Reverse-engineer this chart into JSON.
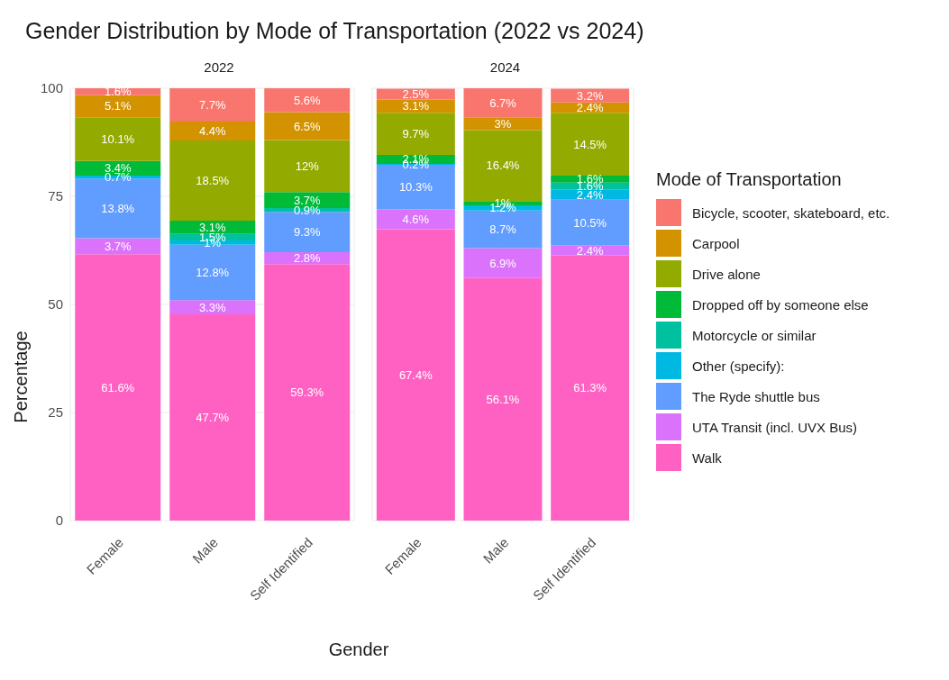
{
  "chart_data": [
    {
      "type": "bar",
      "title": "Gender Distribution by Mode of Transportation (2022 vs 2024)",
      "subtitle": "2022",
      "xlabel": "Gender",
      "ylabel": "Percentage",
      "categories": [
        "Female",
        "Male",
        "Self Identified"
      ],
      "stacked": true,
      "ylim": [
        0,
        100
      ],
      "yticks": [
        0,
        25,
        50,
        75,
        100
      ],
      "grid": true,
      "series": [
        {
          "color": "#ff61c3",
          "values": [
            61.6,
            47.7,
            59.3
          ],
          "value_labels": [
            "61.6%",
            "47.7%",
            "59.3%"
          ]
        },
        {
          "color": "#db72fb",
          "values": [
            3.7,
            3.3,
            2.8
          ],
          "value_labels": [
            "3.7%",
            "3.3%",
            "2.8%"
          ]
        },
        {
          "color": "#619cff",
          "values": [
            13.8,
            12.8,
            9.3
          ],
          "value_labels": [
            "13.8%",
            "12.8%",
            "9.3%"
          ]
        },
        {
          "color": "#00b9e3",
          "values": [
            0.7,
            1,
            null
          ],
          "value_labels": [
            "0.7%",
            "1%",
            null
          ]
        },
        {
          "color": "#00c19f",
          "values": [
            null,
            1.5,
            0.9
          ],
          "value_labels": [
            null,
            "1.5%",
            "0.9%"
          ]
        },
        {
          "color": "#00ba38",
          "values": [
            3.4,
            3.1,
            3.7
          ],
          "value_labels": [
            "3.4%",
            "3.1%",
            "3.7%"
          ]
        },
        {
          "color": "#93aa00",
          "values": [
            10.1,
            18.5,
            12
          ],
          "value_labels": [
            "10.1%",
            "18.5%",
            "12%"
          ]
        },
        {
          "color": "#d39200",
          "values": [
            5.1,
            4.4,
            6.5
          ],
          "value_labels": [
            "5.1%",
            "4.4%",
            "6.5%"
          ]
        },
        {
          "color": "#f8766d",
          "values": [
            1.6,
            7.7,
            5.6
          ],
          "value_labels": [
            "1.6%",
            "7.7%",
            "5.6%"
          ]
        }
      ]
    },
    {
      "type": "bar",
      "subtitle": "2024",
      "categories": [
        "Female",
        "Male",
        "Self Identified"
      ],
      "stacked": true,
      "ylim": [
        0,
        100
      ],
      "yticks": [
        0,
        25,
        50,
        75,
        100
      ],
      "grid": true,
      "tick_labels": "x",
      "legend": "right",
      "legend_title": "Mode of Transportation",
      "series": [
        {
          "name": "Walk",
          "color": "#ff61c3",
          "values": [
            67.4,
            56.1,
            61.3
          ],
          "value_labels": [
            "67.4%",
            "56.1%",
            "61.3%"
          ]
        },
        {
          "name": "UTA Transit (incl. UVX Bus)",
          "color": "#db72fb",
          "values": [
            4.6,
            6.9,
            2.4
          ],
          "value_labels": [
            "4.6%",
            "6.9%",
            "2.4%"
          ]
        },
        {
          "name": "The Ryde shuttle bus",
          "color": "#619cff",
          "values": [
            10.3,
            8.7,
            10.5
          ],
          "value_labels": [
            "10.3%",
            "8.7%",
            "10.5%"
          ]
        },
        {
          "name": "Other (specify):",
          "color": "#00b9e3",
          "values": [
            0.2,
            1.2,
            2.4
          ],
          "value_labels": [
            "0.2%",
            "1.2%",
            "2.4%"
          ]
        },
        {
          "name": "Motorcycle or similar",
          "color": "#00c19f",
          "values": [
            null,
            null,
            1.6
          ],
          "value_labels": [
            null,
            null,
            "1.6%"
          ]
        },
        {
          "name": "Dropped off by someone else",
          "color": "#00ba38",
          "values": [
            2.1,
            1,
            1.6
          ],
          "value_labels": [
            "2.1%",
            "1%",
            "1.6%"
          ]
        },
        {
          "name": "Drive alone",
          "color": "#93aa00",
          "values": [
            9.7,
            16.4,
            14.5
          ],
          "value_labels": [
            "9.7%",
            "16.4%",
            "14.5%"
          ]
        },
        {
          "name": "Carpool",
          "color": "#d39200",
          "values": [
            3.1,
            3,
            2.4
          ],
          "value_labels": [
            "3.1%",
            "3%",
            "2.4%"
          ]
        },
        {
          "name": "Bicycle, scooter, skateboard, etc.",
          "color": "#f8766d",
          "values": [
            2.5,
            6.7,
            3.2
          ],
          "value_labels": [
            "2.5%",
            "6.7%",
            "3.2%"
          ]
        }
      ]
    }
  ]
}
